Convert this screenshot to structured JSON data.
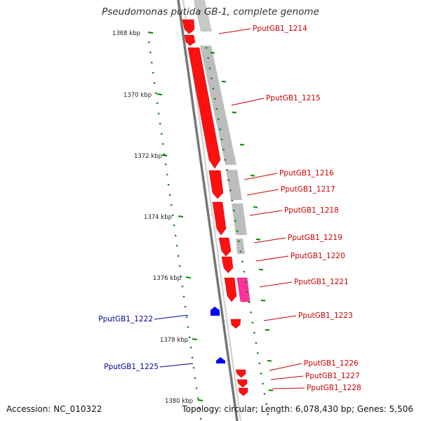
{
  "title": "Pseudomonas putida GB-1, complete genome",
  "footer": {
    "accession": "Accession: NC_010322",
    "summary": "Topology: circular; Length: 6,078,430 bp; Genes: 5,506"
  },
  "kbp_ticks": [
    "1368 kbp",
    "1370 kbp",
    "1372 kbp",
    "1374 kbp",
    "1376 kbp",
    "1378 kbp",
    "1380 kbp"
  ],
  "genes_right": [
    "PputGB1_1214",
    "PputGB1_1215",
    "PputGB1_1216",
    "PputGB1_1217",
    "PputGB1_1218",
    "PputGB1_1219",
    "PputGB1_1220",
    "PputGB1_1221",
    "PputGB1_1223",
    "PputGB1_1226",
    "PputGB1_1227",
    "PputGB1_1228"
  ],
  "genes_left": [
    "PputGB1_1222",
    "PputGB1_1225"
  ],
  "colors": {
    "forward_gene": "#ff0000",
    "forward_gene_dark": "#c00000",
    "reverse_gene": "#0000ff",
    "rna_gene": "#ff3399",
    "backbone": "#888888",
    "grey_band": "#bbbbbb",
    "tick_green": "#008800",
    "label_red": "#cc0000",
    "label_blue": "#000099"
  }
}
